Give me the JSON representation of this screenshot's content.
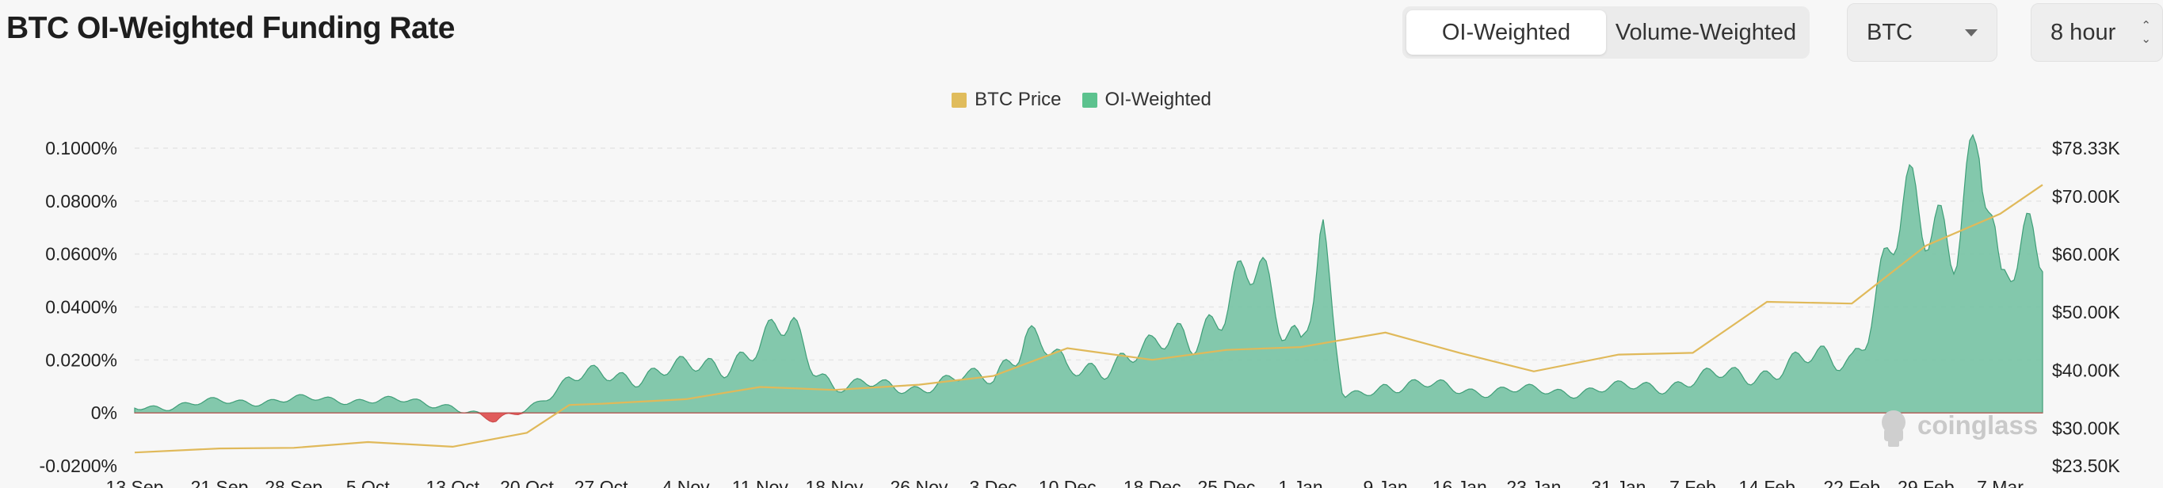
{
  "page": {
    "title": "BTC OI-Weighted Funding Rate",
    "tabs": [
      {
        "label": "OI-Weighted",
        "active": true
      },
      {
        "label": "Volume-Weighted",
        "active": false
      }
    ],
    "coin_select": "BTC",
    "interval_select": "8 hour",
    "watermark": "coinglass"
  },
  "chart_data": {
    "type": "area",
    "title": "BTC OI-Weighted Funding Rate",
    "legend": [
      {
        "name": "BTC Price",
        "color": "#e0bc5c"
      },
      {
        "name": "OI-Weighted",
        "color": "#5cc28e"
      }
    ],
    "legend_position": "top-center",
    "grid": true,
    "colors": {
      "positive_fill": "#6fbf9f",
      "negative_fill": "#e05c5c",
      "price_line": "#e0b95a"
    },
    "x_tick_labels": [
      "13 Sep",
      "21 Sep",
      "28 Sep",
      "5 Oct",
      "13 Oct",
      "20 Oct",
      "27 Oct",
      "4 Nov",
      "11 Nov",
      "18 Nov",
      "26 Nov",
      "3 Dec",
      "10 Dec",
      "18 Dec",
      "25 Dec",
      "1 Jan",
      "9 Jan",
      "16 Jan",
      "23 Jan",
      "31 Jan",
      "7 Feb",
      "14 Feb",
      "22 Feb",
      "29 Feb",
      "7 Mar"
    ],
    "y_left": {
      "label": "",
      "ticks": [
        "0.1000%",
        "0.0800%",
        "0.0600%",
        "0.0400%",
        "0.0200%",
        "0%",
        "-0.0200%"
      ],
      "tick_values": [
        0.1,
        0.08,
        0.06,
        0.04,
        0.02,
        0,
        -0.02
      ],
      "range": [
        -0.02,
        0.1
      ]
    },
    "y_right": {
      "label": "",
      "ticks": [
        "$78.33K",
        "$70.00K",
        "$60.00K",
        "$50.00K",
        "$40.00K",
        "$30.00K",
        "$23.50K"
      ],
      "tick_values": [
        78330,
        70000,
        60000,
        50000,
        40000,
        30000,
        23500
      ],
      "range": [
        23500,
        78330
      ]
    },
    "series": [
      {
        "name": "BTC Price",
        "axis": "right",
        "points": [
          [
            "13 Sep",
            25800
          ],
          [
            "21 Sep",
            26500
          ],
          [
            "28 Sep",
            26600
          ],
          [
            "5 Oct",
            27600
          ],
          [
            "13 Oct",
            26800
          ],
          [
            "20 Oct",
            29200
          ],
          [
            "24 Oct",
            34000
          ],
          [
            "27 Oct",
            34200
          ],
          [
            "4 Nov",
            35000
          ],
          [
            "11 Nov",
            37100
          ],
          [
            "18 Nov",
            36600
          ],
          [
            "26 Nov",
            37500
          ],
          [
            "3 Dec",
            39000
          ],
          [
            "10 Dec",
            43800
          ],
          [
            "18 Dec",
            41800
          ],
          [
            "25 Dec",
            43500
          ],
          [
            "1 Jan",
            44000
          ],
          [
            "9 Jan",
            46500
          ],
          [
            "16 Jan",
            43000
          ],
          [
            "23 Jan",
            39800
          ],
          [
            "31 Jan",
            42700
          ],
          [
            "7 Feb",
            43000
          ],
          [
            "14 Feb",
            51800
          ],
          [
            "22 Feb",
            51500
          ],
          [
            "29 Feb",
            61500
          ],
          [
            "7 Mar",
            67000
          ],
          [
            "11 Mar",
            72000
          ]
        ]
      },
      {
        "name": "OI-Weighted",
        "axis": "left",
        "unit": "%",
        "points": [
          [
            "13 Sep",
            0.002
          ],
          [
            "21 Sep",
            0.004
          ],
          [
            "28 Sep",
            0.005
          ],
          [
            "5 Oct",
            0.005
          ],
          [
            "13 Oct",
            0.003
          ],
          [
            "17 Oct",
            -0.004
          ],
          [
            "20 Oct",
            0.002
          ],
          [
            "24 Oct",
            0.012
          ],
          [
            "27 Oct",
            0.014
          ],
          [
            "4 Nov",
            0.016
          ],
          [
            "11 Nov",
            0.024
          ],
          [
            "14 Nov",
            0.032
          ],
          [
            "18 Nov",
            0.01
          ],
          [
            "26 Nov",
            0.01
          ],
          [
            "3 Dec",
            0.014
          ],
          [
            "6 Dec",
            0.031
          ],
          [
            "10 Dec",
            0.015
          ],
          [
            "14 Dec",
            0.02
          ],
          [
            "18 Dec",
            0.022
          ],
          [
            "21 Dec",
            0.032
          ],
          [
            "25 Dec",
            0.038
          ],
          [
            "28 Dec",
            0.052
          ],
          [
            "1 Jan",
            0.03
          ],
          [
            "3 Jan",
            0.062
          ],
          [
            "5 Jan",
            0.005
          ],
          [
            "9 Jan",
            0.011
          ],
          [
            "16 Jan",
            0.009
          ],
          [
            "23 Jan",
            0.008
          ],
          [
            "31 Jan",
            0.009
          ],
          [
            "7 Feb",
            0.012
          ],
          [
            "14 Feb",
            0.016
          ],
          [
            "22 Feb",
            0.022
          ],
          [
            "27 Feb",
            0.07
          ],
          [
            "3 Mar",
            0.08
          ],
          [
            "5 Mar",
            0.098
          ],
          [
            "7 Mar",
            0.04
          ],
          [
            "9 Mar",
            0.065
          ],
          [
            "11 Mar",
            0.082
          ]
        ]
      }
    ]
  }
}
